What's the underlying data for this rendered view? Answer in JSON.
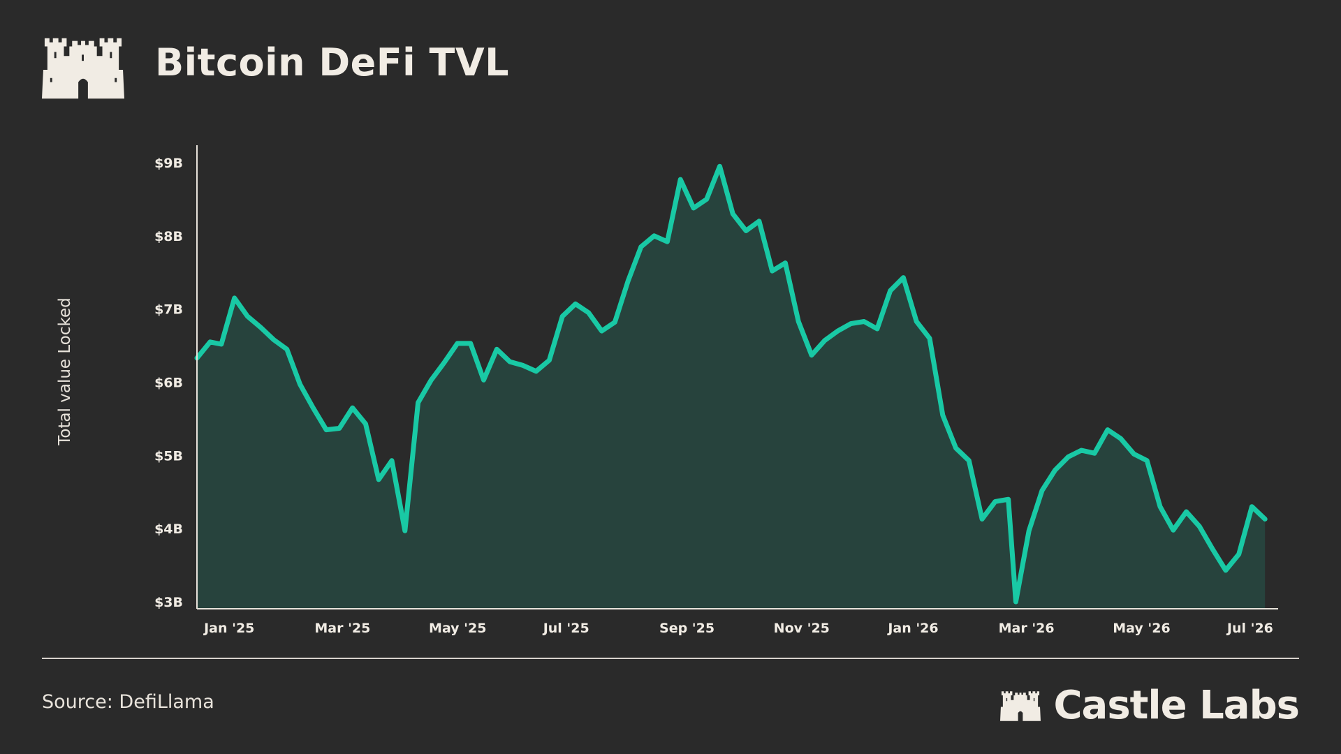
{
  "header": {
    "title": "Bitcoin DeFi TVL"
  },
  "footer": {
    "source": "Source: DefiLlama",
    "brand": "Castle Labs"
  },
  "icons": {
    "top_logo": "castle-icon",
    "brand_logo": "castle-icon"
  },
  "colors": {
    "background": "#2a2a2a",
    "line": "#19c9a5",
    "area_fill": "#27433d",
    "text": "#f1ece4"
  },
  "chart_data": {
    "type": "area",
    "title": "Bitcoin DeFi TVL",
    "xlabel": "",
    "ylabel": "Total value Locked",
    "ylim": [
      3,
      9.2
    ],
    "xlim": [
      "2024-12-26",
      "2026-07-26"
    ],
    "y_ticks": [
      {
        "value": 3,
        "label": "$3B"
      },
      {
        "value": 4,
        "label": "$4B"
      },
      {
        "value": 5,
        "label": "$5B"
      },
      {
        "value": 6,
        "label": "$6B"
      },
      {
        "value": 7,
        "label": "$7B"
      },
      {
        "value": 8,
        "label": "$8B"
      },
      {
        "value": 9,
        "label": "$9B"
      }
    ],
    "x_ticks": [
      {
        "date": "2025-01-01",
        "label": "Jan '25"
      },
      {
        "date": "2025-03-01",
        "label": "Mar '25"
      },
      {
        "date": "2025-05-01",
        "label": "May '25"
      },
      {
        "date": "2025-07-01",
        "label": "Jul '25"
      },
      {
        "date": "2025-09-01",
        "label": "Sep '25"
      },
      {
        "date": "2025-11-01",
        "label": "Nov '25"
      },
      {
        "date": "2026-01-01",
        "label": "Jan '26"
      },
      {
        "date": "2026-03-01",
        "label": "Mar '26"
      },
      {
        "date": "2026-05-01",
        "label": "May '26"
      },
      {
        "date": "2026-07-01",
        "label": "Jul '26"
      }
    ],
    "grid": false,
    "legend": "none",
    "series": [
      {
        "values": [
          [
            "2024-12-26",
            6.33
          ],
          [
            "2025-01-02",
            6.55
          ],
          [
            "2025-01-08",
            6.52
          ],
          [
            "2025-01-15",
            7.15
          ],
          [
            "2025-01-22",
            6.9
          ],
          [
            "2025-01-29",
            6.75
          ],
          [
            "2025-02-05",
            6.58
          ],
          [
            "2025-02-12",
            6.45
          ],
          [
            "2025-02-19",
            5.97
          ],
          [
            "2025-02-26",
            5.65
          ],
          [
            "2025-03-05",
            5.35
          ],
          [
            "2025-03-12",
            5.37
          ],
          [
            "2025-03-19",
            5.65
          ],
          [
            "2025-03-26",
            5.43
          ],
          [
            "2025-04-02",
            4.67
          ],
          [
            "2025-04-09",
            4.93
          ],
          [
            "2025-04-16",
            3.97
          ],
          [
            "2025-04-23",
            5.72
          ],
          [
            "2025-04-30",
            6.03
          ],
          [
            "2025-05-07",
            6.27
          ],
          [
            "2025-05-14",
            6.53
          ],
          [
            "2025-05-21",
            6.53
          ],
          [
            "2025-05-28",
            6.03
          ],
          [
            "2025-06-04",
            6.45
          ],
          [
            "2025-06-11",
            6.28
          ],
          [
            "2025-06-18",
            6.23
          ],
          [
            "2025-06-25",
            6.15
          ],
          [
            "2025-07-02",
            6.3
          ],
          [
            "2025-07-09",
            6.9
          ],
          [
            "2025-07-16",
            7.07
          ],
          [
            "2025-07-23",
            6.95
          ],
          [
            "2025-07-30",
            6.7
          ],
          [
            "2025-08-06",
            6.82
          ],
          [
            "2025-08-13",
            7.38
          ],
          [
            "2025-08-20",
            7.85
          ],
          [
            "2025-08-27",
            8.0
          ],
          [
            "2025-09-03",
            7.92
          ],
          [
            "2025-09-10",
            8.77
          ],
          [
            "2025-09-17",
            8.38
          ],
          [
            "2025-09-24",
            8.5
          ],
          [
            "2025-10-01",
            8.95
          ],
          [
            "2025-10-08",
            8.3
          ],
          [
            "2025-10-15",
            8.07
          ],
          [
            "2025-10-22",
            8.2
          ],
          [
            "2025-10-29",
            7.52
          ],
          [
            "2025-11-05",
            7.63
          ],
          [
            "2025-11-12",
            6.83
          ],
          [
            "2025-11-19",
            6.37
          ],
          [
            "2025-11-26",
            6.57
          ],
          [
            "2025-12-03",
            6.7
          ],
          [
            "2025-12-10",
            6.8
          ],
          [
            "2025-12-17",
            6.83
          ],
          [
            "2025-12-24",
            6.73
          ],
          [
            "2025-12-31",
            7.25
          ],
          [
            "2026-01-07",
            7.43
          ],
          [
            "2026-01-14",
            6.83
          ],
          [
            "2026-01-21",
            6.6
          ],
          [
            "2026-01-28",
            5.55
          ],
          [
            "2026-02-04",
            5.1
          ],
          [
            "2026-02-11",
            4.93
          ],
          [
            "2026-02-18",
            4.13
          ],
          [
            "2026-02-25",
            4.37
          ],
          [
            "2026-03-04",
            4.4
          ],
          [
            "2026-03-08",
            3.0
          ],
          [
            "2026-03-15",
            3.97
          ],
          [
            "2026-03-22",
            4.52
          ],
          [
            "2026-03-29",
            4.8
          ],
          [
            "2026-04-05",
            4.98
          ],
          [
            "2026-04-12",
            5.07
          ],
          [
            "2026-04-19",
            5.03
          ],
          [
            "2026-04-26",
            5.35
          ],
          [
            "2026-05-03",
            5.23
          ],
          [
            "2026-05-10",
            5.02
          ],
          [
            "2026-05-17",
            4.93
          ],
          [
            "2026-05-24",
            4.3
          ],
          [
            "2026-05-31",
            3.98
          ],
          [
            "2026-06-07",
            4.23
          ],
          [
            "2026-06-14",
            4.03
          ],
          [
            "2026-06-21",
            3.72
          ],
          [
            "2026-06-28",
            3.43
          ],
          [
            "2026-07-05",
            3.65
          ],
          [
            "2026-07-12",
            4.3
          ],
          [
            "2026-07-19",
            4.13
          ]
        ]
      }
    ]
  }
}
